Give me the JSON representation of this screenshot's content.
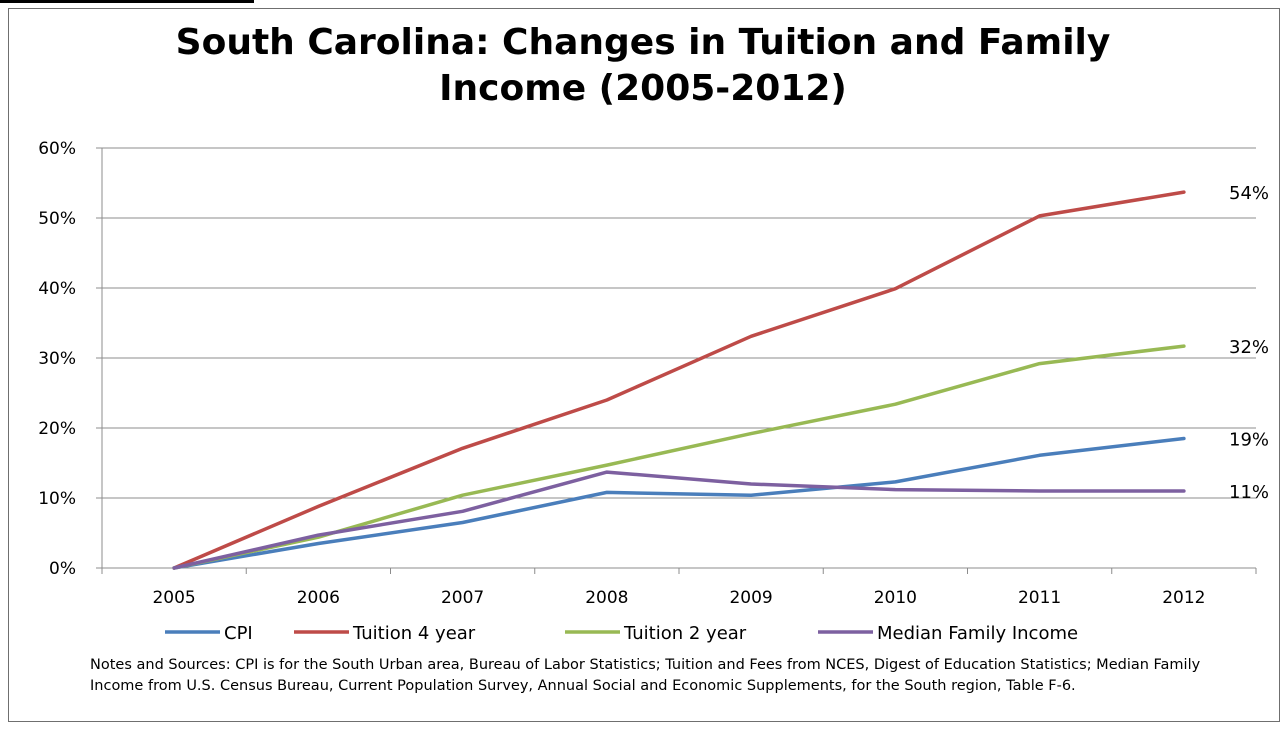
{
  "chart_data": {
    "type": "line",
    "title_lines": [
      "South Carolina: Changes in Tuition and Family",
      "Income (2005-2012)"
    ],
    "categories": [
      "2005",
      "2006",
      "2007",
      "2008",
      "2009",
      "2010",
      "2011",
      "2012"
    ],
    "ylim": [
      0,
      60
    ],
    "yticks": [
      0,
      10,
      20,
      30,
      40,
      50,
      60
    ],
    "ytick_labels": [
      "0%",
      "10%",
      "20%",
      "30%",
      "40%",
      "50%",
      "60%"
    ],
    "grid": true,
    "legend_position": "bottom",
    "series": [
      {
        "name": "CPI",
        "color": "#4a7ebb",
        "values": [
          0,
          3.5,
          6.5,
          10.8,
          10.4,
          12.3,
          16.1,
          18.5
        ],
        "end_label": "19%"
      },
      {
        "name": "Tuition 4 year",
        "color": "#be4b48",
        "values": [
          0,
          8.8,
          17.1,
          24.0,
          33.1,
          39.9,
          50.3,
          53.7
        ],
        "end_label": "54%"
      },
      {
        "name": "Tuition 2 year",
        "color": "#98b954",
        "values": [
          0,
          4.4,
          10.4,
          14.7,
          19.2,
          23.4,
          29.2,
          31.7
        ],
        "end_label": "32%"
      },
      {
        "name": "Median Family Income",
        "color": "#7d60a0",
        "values": [
          0,
          4.7,
          8.1,
          13.7,
          12.0,
          11.2,
          11.0,
          11.0
        ],
        "end_label": "11%"
      }
    ],
    "notes": "Notes and Sources: CPI is for the South Urban area, Bureau of Labor Statistics; Tuition and Fees  from NCES, Digest of Education Statistics; Median Family Income from U.S. Census Bureau, Current Population Survey, Annual Social and Economic Supplements, for the South region, Table F-6."
  }
}
